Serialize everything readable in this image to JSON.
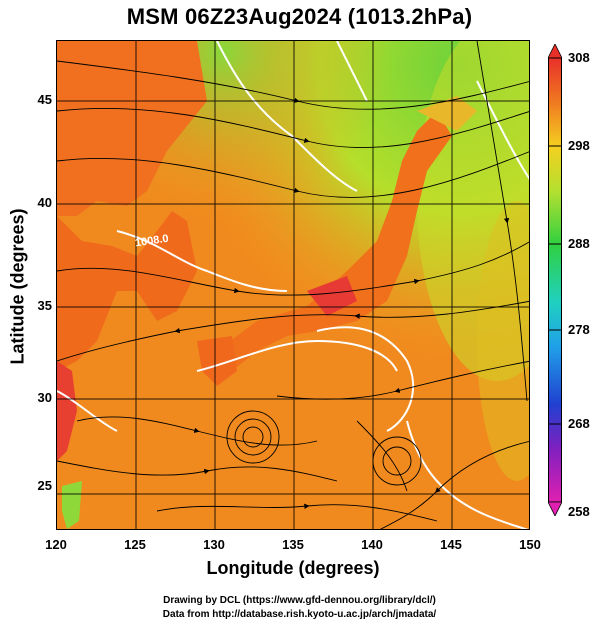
{
  "title": "MSM 06Z23Aug2024 (1013.2hPa)",
  "x_axis": {
    "label": "Longitude (degrees)",
    "ticks": [
      "120",
      "125",
      "130",
      "135",
      "140",
      "145",
      "150"
    ]
  },
  "y_axis": {
    "label": "Latitude  (degrees)",
    "ticks": [
      "45",
      "40",
      "35",
      "30",
      "25"
    ]
  },
  "colorbar": {
    "ticks": [
      "308",
      "298",
      "288",
      "278",
      "268",
      "258"
    ]
  },
  "contour_label": "1008.0",
  "credits": [
    "Drawing by DCL (https://www.gfd-dennou.org/library/dcl/)",
    "Data from http://database.rish.kyoto-u.ac.jp/arch/jmadata/"
  ],
  "colors": {
    "warm": "#f07a1a",
    "hot": "#e84a2a",
    "cool": "#4dd43a",
    "mid": "#f0c820"
  }
}
